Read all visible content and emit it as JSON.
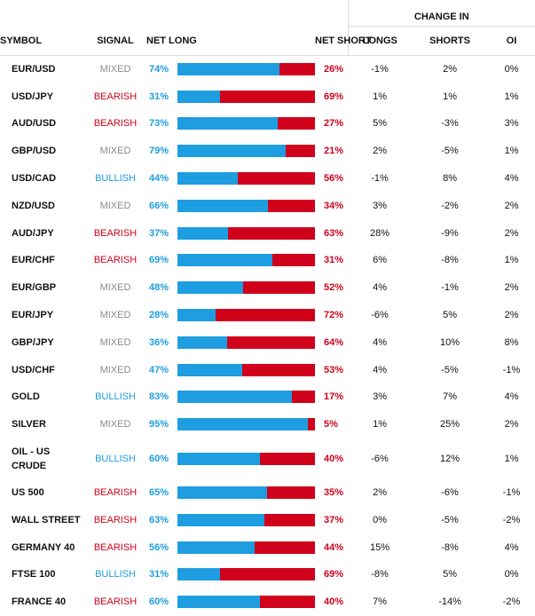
{
  "header": {
    "change_in": "CHANGE IN",
    "symbol": "SYMBOL",
    "signal": "SIGNAL",
    "net_long": "NET LONG",
    "net_short": "NET SHORT",
    "longs": "LONGS",
    "shorts": "SHORTS",
    "oi": "OI"
  },
  "colors": {
    "long": "#1e9de0",
    "short": "#d0021b",
    "mixed": "#8a8a8a"
  },
  "rows": [
    {
      "symbol": "EUR/USD",
      "signal": "MIXED",
      "net_long": "74%",
      "net_short": "26%",
      "long_pct": 74,
      "longs": "-1%",
      "shorts": "2%",
      "oi": "0%"
    },
    {
      "symbol": "USD/JPY",
      "signal": "BEARISH",
      "net_long": "31%",
      "net_short": "69%",
      "long_pct": 31,
      "longs": "1%",
      "shorts": "1%",
      "oi": "1%"
    },
    {
      "symbol": "AUD/USD",
      "signal": "BEARISH",
      "net_long": "73%",
      "net_short": "27%",
      "long_pct": 73,
      "longs": "5%",
      "shorts": "-3%",
      "oi": "3%"
    },
    {
      "symbol": "GBP/USD",
      "signal": "MIXED",
      "net_long": "79%",
      "net_short": "21%",
      "long_pct": 79,
      "longs": "2%",
      "shorts": "-5%",
      "oi": "1%"
    },
    {
      "symbol": "USD/CAD",
      "signal": "BULLISH",
      "net_long": "44%",
      "net_short": "56%",
      "long_pct": 44,
      "longs": "-1%",
      "shorts": "8%",
      "oi": "4%"
    },
    {
      "symbol": "NZD/USD",
      "signal": "MIXED",
      "net_long": "66%",
      "net_short": "34%",
      "long_pct": 66,
      "longs": "3%",
      "shorts": "-2%",
      "oi": "2%"
    },
    {
      "symbol": "AUD/JPY",
      "signal": "BEARISH",
      "net_long": "37%",
      "net_short": "63%",
      "long_pct": 37,
      "longs": "28%",
      "shorts": "-9%",
      "oi": "2%"
    },
    {
      "symbol": "EUR/CHF",
      "signal": "BEARISH",
      "net_long": "69%",
      "net_short": "31%",
      "long_pct": 69,
      "longs": "6%",
      "shorts": "-8%",
      "oi": "1%"
    },
    {
      "symbol": "EUR/GBP",
      "signal": "MIXED",
      "net_long": "48%",
      "net_short": "52%",
      "long_pct": 48,
      "longs": "4%",
      "shorts": "-1%",
      "oi": "2%"
    },
    {
      "symbol": "EUR/JPY",
      "signal": "MIXED",
      "net_long": "28%",
      "net_short": "72%",
      "long_pct": 28,
      "longs": "-6%",
      "shorts": "5%",
      "oi": "2%"
    },
    {
      "symbol": "GBP/JPY",
      "signal": "MIXED",
      "net_long": "36%",
      "net_short": "64%",
      "long_pct": 36,
      "longs": "4%",
      "shorts": "10%",
      "oi": "8%"
    },
    {
      "symbol": "USD/CHF",
      "signal": "MIXED",
      "net_long": "47%",
      "net_short": "53%",
      "long_pct": 47,
      "longs": "4%",
      "shorts": "-5%",
      "oi": "-1%"
    },
    {
      "symbol": "GOLD",
      "signal": "BULLISH",
      "net_long": "83%",
      "net_short": "17%",
      "long_pct": 83,
      "longs": "3%",
      "shorts": "7%",
      "oi": "4%"
    },
    {
      "symbol": "SILVER",
      "signal": "MIXED",
      "net_long": "95%",
      "net_short": "5%",
      "long_pct": 95,
      "longs": "1%",
      "shorts": "25%",
      "oi": "2%"
    },
    {
      "symbol": "OIL - US CRUDE",
      "signal": "BULLISH",
      "net_long": "60%",
      "net_short": "40%",
      "long_pct": 60,
      "longs": "-6%",
      "shorts": "12%",
      "oi": "1%"
    },
    {
      "symbol": "US 500",
      "signal": "BEARISH",
      "net_long": "65%",
      "net_short": "35%",
      "long_pct": 65,
      "longs": "2%",
      "shorts": "-6%",
      "oi": "-1%"
    },
    {
      "symbol": "WALL STREET",
      "signal": "BEARISH",
      "net_long": "63%",
      "net_short": "37%",
      "long_pct": 63,
      "longs": "0%",
      "shorts": "-5%",
      "oi": "-2%"
    },
    {
      "symbol": "GERMANY 40",
      "signal": "BEARISH",
      "net_long": "56%",
      "net_short": "44%",
      "long_pct": 56,
      "longs": "15%",
      "shorts": "-8%",
      "oi": "4%"
    },
    {
      "symbol": "FTSE 100",
      "signal": "BULLISH",
      "net_long": "31%",
      "net_short": "69%",
      "long_pct": 31,
      "longs": "-8%",
      "shorts": "5%",
      "oi": "0%"
    },
    {
      "symbol": "FRANCE 40",
      "signal": "BEARISH",
      "net_long": "60%",
      "net_short": "40%",
      "long_pct": 60,
      "longs": "7%",
      "shorts": "-14%",
      "oi": "-2%"
    }
  ]
}
